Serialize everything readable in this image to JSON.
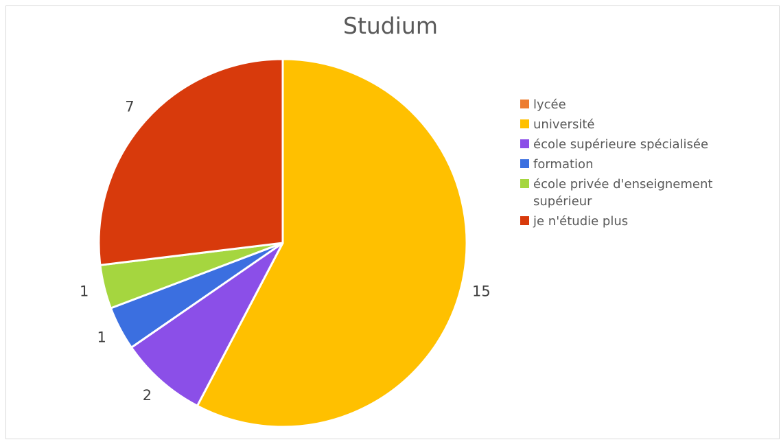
{
  "chart_data": {
    "type": "pie",
    "title": "Studium",
    "categories": [
      "lycée",
      "université",
      "école supérieure spécialisée",
      "formation",
      "école privée d'enseignement supérieur",
      "je n'étudie plus"
    ],
    "values": [
      0,
      15,
      2,
      1,
      1,
      7
    ],
    "colors": [
      "#ED7D31",
      "#FFC000",
      "#8B4FE8",
      "#3B6FE0",
      "#A5D63F",
      "#D83A0C"
    ],
    "data_labels": [
      "",
      "15",
      "2",
      "1",
      "1",
      "7"
    ],
    "legend_position": "right",
    "start_angle": "12 o'clock",
    "direction": "clockwise"
  }
}
